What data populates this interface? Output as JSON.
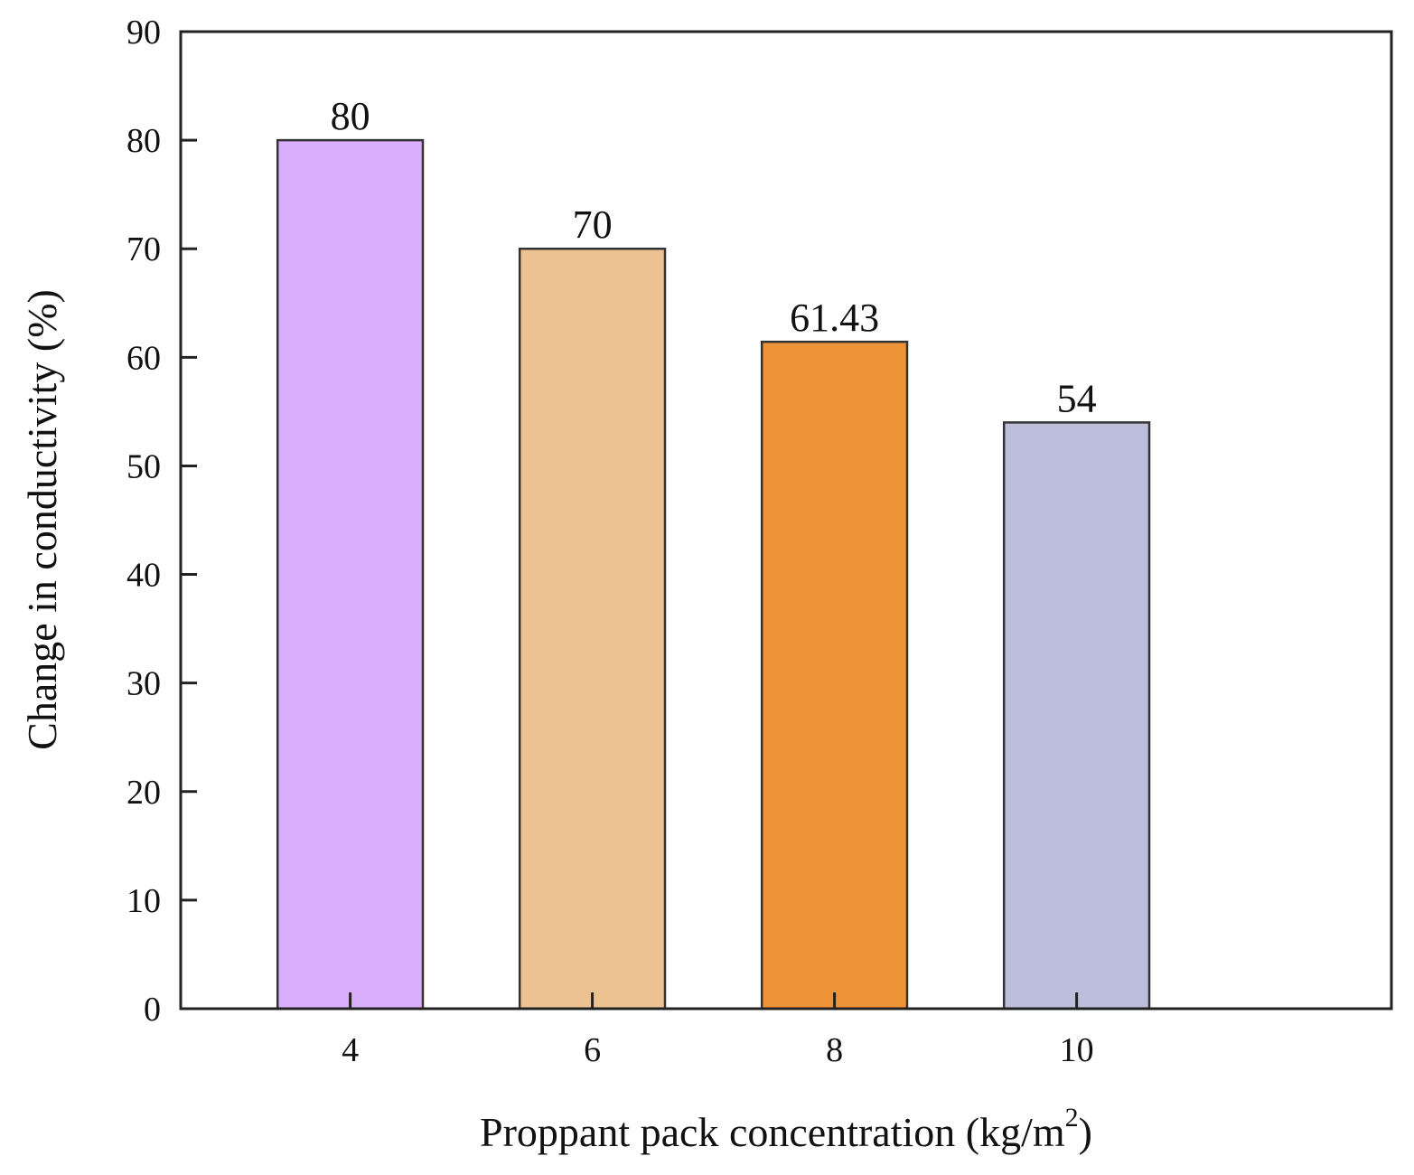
{
  "chart_data": {
    "type": "bar",
    "categories": [
      "4",
      "6",
      "8",
      "10"
    ],
    "values": [
      80,
      70,
      61.43,
      54
    ],
    "value_labels": [
      "80",
      "70",
      "61.43",
      "54"
    ],
    "colors": [
      "#d9aefc",
      "#edc293",
      "#ef9339",
      "#bcbedc"
    ],
    "xlabel_main": "Proppant pack concentration (kg/m",
    "xlabel_sup": "2",
    "xlabel_end": ")",
    "ylabel": "Change in conductivity (%)",
    "ylim": [
      0,
      90
    ],
    "yticks": [
      0,
      10,
      20,
      30,
      40,
      50,
      60,
      70,
      80,
      90
    ],
    "xlim": [
      2.6,
      12.6
    ],
    "grid": false
  }
}
